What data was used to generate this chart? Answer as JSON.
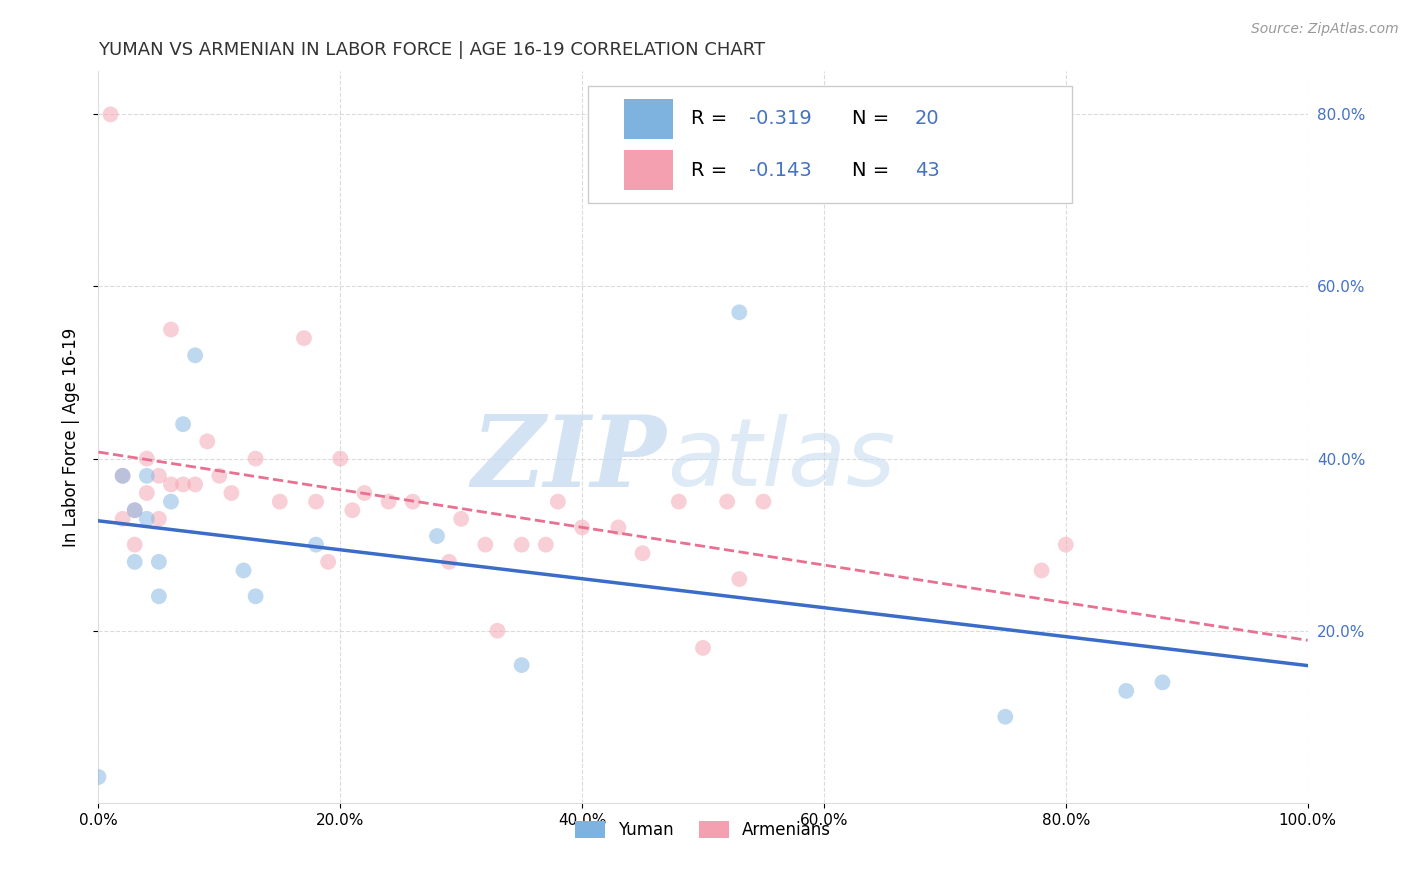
{
  "title": "YUMAN VS ARMENIAN IN LABOR FORCE | AGE 16-19 CORRELATION CHART",
  "source": "Source: ZipAtlas.com",
  "xlabel_label": "Yuman",
  "ylabel_label": "Armenians",
  "ylabel": "In Labor Force | Age 16-19",
  "xlim": [
    0.0,
    1.0
  ],
  "ylim": [
    0.0,
    0.85
  ],
  "xticks": [
    0.0,
    0.2,
    0.4,
    0.6,
    0.8,
    1.0
  ],
  "yticks": [
    0.2,
    0.4,
    0.6,
    0.8
  ],
  "xtick_labels": [
    "0.0%",
    "20.0%",
    "40.0%",
    "60.0%",
    "80.0%",
    "100.0%"
  ],
  "right_ytick_labels": [
    "20.0%",
    "40.0%",
    "60.0%",
    "80.0%"
  ],
  "right_yticks": [
    0.2,
    0.4,
    0.6,
    0.8
  ],
  "yuman_color": "#7EB3E0",
  "armenian_color": "#F5A0B0",
  "yuman_line_color": "#3B6CC7",
  "armenian_line_color": "#E87090",
  "legend_R_yuman": "R = -0.319",
  "legend_N_yuman": "N = 20",
  "legend_R_armenian": "R = -0.143",
  "legend_N_armenian": "N = 43",
  "accent_color": "#4472C4",
  "yuman_scatter_x": [
    0.0,
    0.02,
    0.03,
    0.03,
    0.04,
    0.04,
    0.05,
    0.05,
    0.06,
    0.07,
    0.08,
    0.12,
    0.13,
    0.18,
    0.28,
    0.35,
    0.53,
    0.75,
    0.85,
    0.88
  ],
  "yuman_scatter_y": [
    0.03,
    0.38,
    0.34,
    0.28,
    0.38,
    0.33,
    0.28,
    0.24,
    0.35,
    0.44,
    0.52,
    0.27,
    0.24,
    0.3,
    0.31,
    0.16,
    0.57,
    0.1,
    0.13,
    0.14
  ],
  "armenian_scatter_x": [
    0.01,
    0.02,
    0.02,
    0.03,
    0.03,
    0.04,
    0.04,
    0.05,
    0.05,
    0.06,
    0.06,
    0.07,
    0.08,
    0.09,
    0.1,
    0.11,
    0.13,
    0.15,
    0.17,
    0.18,
    0.19,
    0.2,
    0.21,
    0.22,
    0.24,
    0.26,
    0.29,
    0.3,
    0.32,
    0.33,
    0.35,
    0.37,
    0.38,
    0.4,
    0.43,
    0.45,
    0.48,
    0.5,
    0.52,
    0.53,
    0.55,
    0.78,
    0.8
  ],
  "armenian_scatter_y": [
    0.8,
    0.38,
    0.33,
    0.34,
    0.3,
    0.4,
    0.36,
    0.38,
    0.33,
    0.55,
    0.37,
    0.37,
    0.37,
    0.42,
    0.38,
    0.36,
    0.4,
    0.35,
    0.54,
    0.35,
    0.28,
    0.4,
    0.34,
    0.36,
    0.35,
    0.35,
    0.28,
    0.33,
    0.3,
    0.2,
    0.3,
    0.3,
    0.35,
    0.32,
    0.32,
    0.29,
    0.35,
    0.18,
    0.35,
    0.26,
    0.35,
    0.27,
    0.3
  ],
  "title_fontsize": 13,
  "label_fontsize": 12,
  "tick_fontsize": 11,
  "legend_fontsize": 14,
  "marker_size": 130,
  "marker_alpha": 0.5,
  "background_color": "#FFFFFF",
  "grid_color": "#CCCCCC",
  "grid_alpha": 0.7,
  "watermark_zip_color": "#DDEEFF",
  "watermark_atlas_color": "#DDEEFF"
}
